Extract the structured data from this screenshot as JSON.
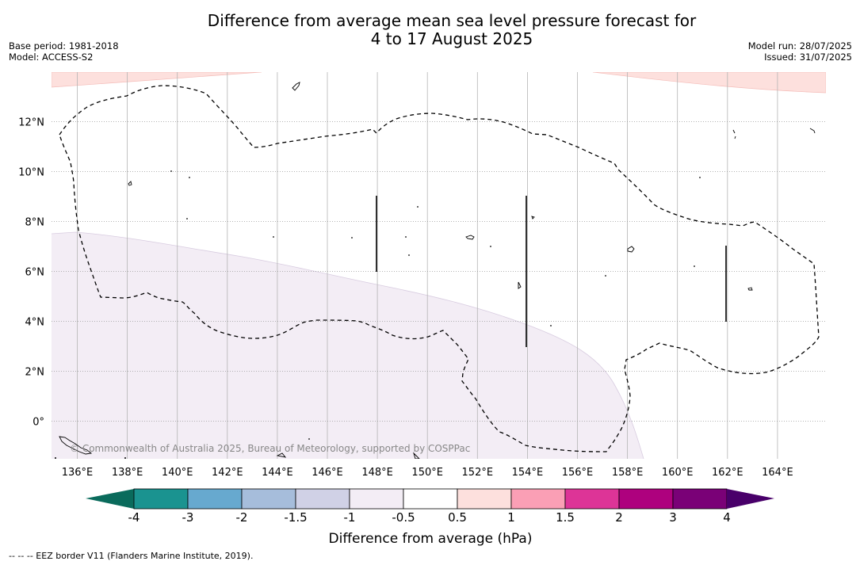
{
  "header": {
    "title_line1": "Difference from average mean sea level pressure forecast for",
    "title_line2": "4 to 17 August 2025",
    "base_period": "Base period: 1981-2018",
    "model": "Model: ACCESS-S2",
    "model_run": "Model run: 28/07/2025",
    "issued": "Issued: 31/07/2025"
  },
  "map": {
    "x_ticks": [
      "136°E",
      "138°E",
      "140°E",
      "142°E",
      "144°E",
      "146°E",
      "148°E",
      "150°E",
      "152°E",
      "154°E",
      "156°E",
      "158°E",
      "160°E",
      "162°E",
      "164°E"
    ],
    "y_ticks": [
      "12°N",
      "10°N",
      "8°N",
      "6°N",
      "4°N",
      "2°N",
      "0°"
    ],
    "copyright": "© Commonwealth of Australia 2025, Bureau of Meteorology, supported by COSPPac",
    "anomaly_colors": {
      "negative_light": "#f3edf5",
      "positive_light": "#fde0dd"
    }
  },
  "colorbar": {
    "title": "Difference from average (hPa)",
    "labels": [
      "-4",
      "-3",
      "-2",
      "-1.5",
      "-1",
      "-0.5",
      "0.5",
      "1",
      "1.5",
      "2",
      "3",
      "4"
    ],
    "colors": [
      "#1a9390",
      "#67a9cf",
      "#a6bddb",
      "#d0d1e6",
      "#f3edf5",
      "#ffffff",
      "#fde0dd",
      "#fa9fb5",
      "#dd3497",
      "#ae017e",
      "#7a0177"
    ],
    "under_color": "#0a6b5c",
    "over_color": "#49006a"
  },
  "footnote": "--  --  -- EEZ border V11 (Flanders Marine Institute, 2019)."
}
